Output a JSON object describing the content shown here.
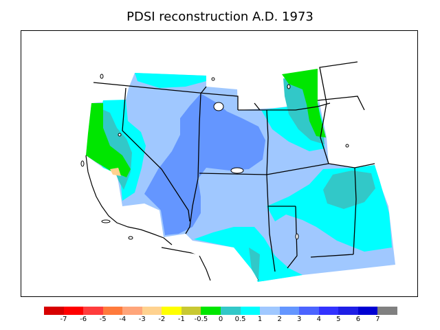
{
  "title": "PDSI reconstruction A.D. 1973",
  "legend": {
    "colors": [
      "#d70000",
      "#ff0000",
      "#ff3c3c",
      "#ff7a3c",
      "#ffa57a",
      "#ffd28f",
      "#ffff00",
      "#c8c832",
      "#00e600",
      "#32c8c8",
      "#00ffff",
      "#a0c8ff",
      "#6496ff",
      "#4b64ff",
      "#3232ff",
      "#1e1ee6",
      "#0000d2",
      "#808080"
    ],
    "labels": [
      "-7",
      "-6",
      "-5",
      "-4",
      "-3",
      "-2",
      "-1",
      "-0.5",
      "0",
      "0.5",
      "1",
      "2",
      "3",
      "4",
      "5",
      "6",
      "7"
    ]
  },
  "map_classes": {
    "background": "#a0c8ff",
    "cells": [
      {
        "class": "1",
        "color": "#00ffff"
      },
      {
        "class": "2",
        "color": "#a0c8ff"
      },
      {
        "class": "3",
        "color": "#6496ff"
      },
      {
        "class": "0.5",
        "color": "#32c8c8"
      },
      {
        "class": "0",
        "color": "#00e600"
      },
      {
        "class": "-2",
        "color": "#ffd28f"
      }
    ]
  }
}
